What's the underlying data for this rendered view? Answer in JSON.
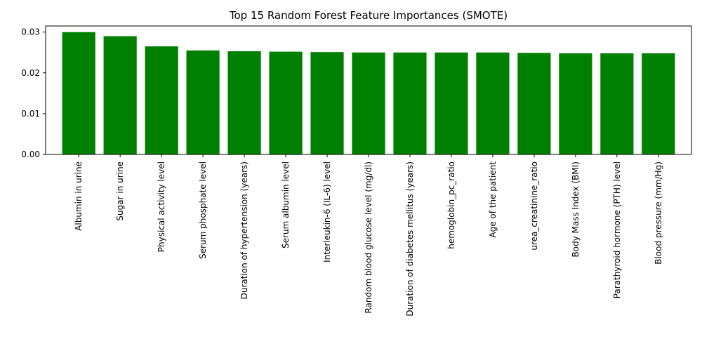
{
  "chart_data": {
    "type": "bar",
    "title": "Top 15 Random Forest Feature Importances (SMOTE)",
    "xlabel": "",
    "ylabel": "",
    "categories": [
      "Albumin in urine",
      "Sugar in urine",
      "Physical activity level",
      "Serum phosphate level",
      "Duration of hypertension (years)",
      "Serum albumin level",
      "Interleukin-6 (IL-6) level",
      "Random blood glucose level (mg/dl)",
      "Duration of diabetes mellitus (years)",
      "hemoglobin_pc_ratio",
      "Age of the patient",
      "urea_creatinine_ratio",
      "Body Mass Index (BMI)",
      "Parathyroid hormone (PTH) level",
      "Blood pressure (mm/Hg)"
    ],
    "values": [
      0.03,
      0.029,
      0.0265,
      0.0255,
      0.0253,
      0.0252,
      0.0251,
      0.025,
      0.025,
      0.025,
      0.025,
      0.0249,
      0.0248,
      0.0248,
      0.0248
    ],
    "ylim": [
      0,
      0.0315
    ],
    "yticks": [
      "0.00",
      "0.01",
      "0.02",
      "0.03"
    ],
    "ytick_values": [
      0,
      0.01,
      0.02,
      0.03
    ],
    "bar_color": "#008000",
    "grid": false,
    "legend": "none"
  }
}
